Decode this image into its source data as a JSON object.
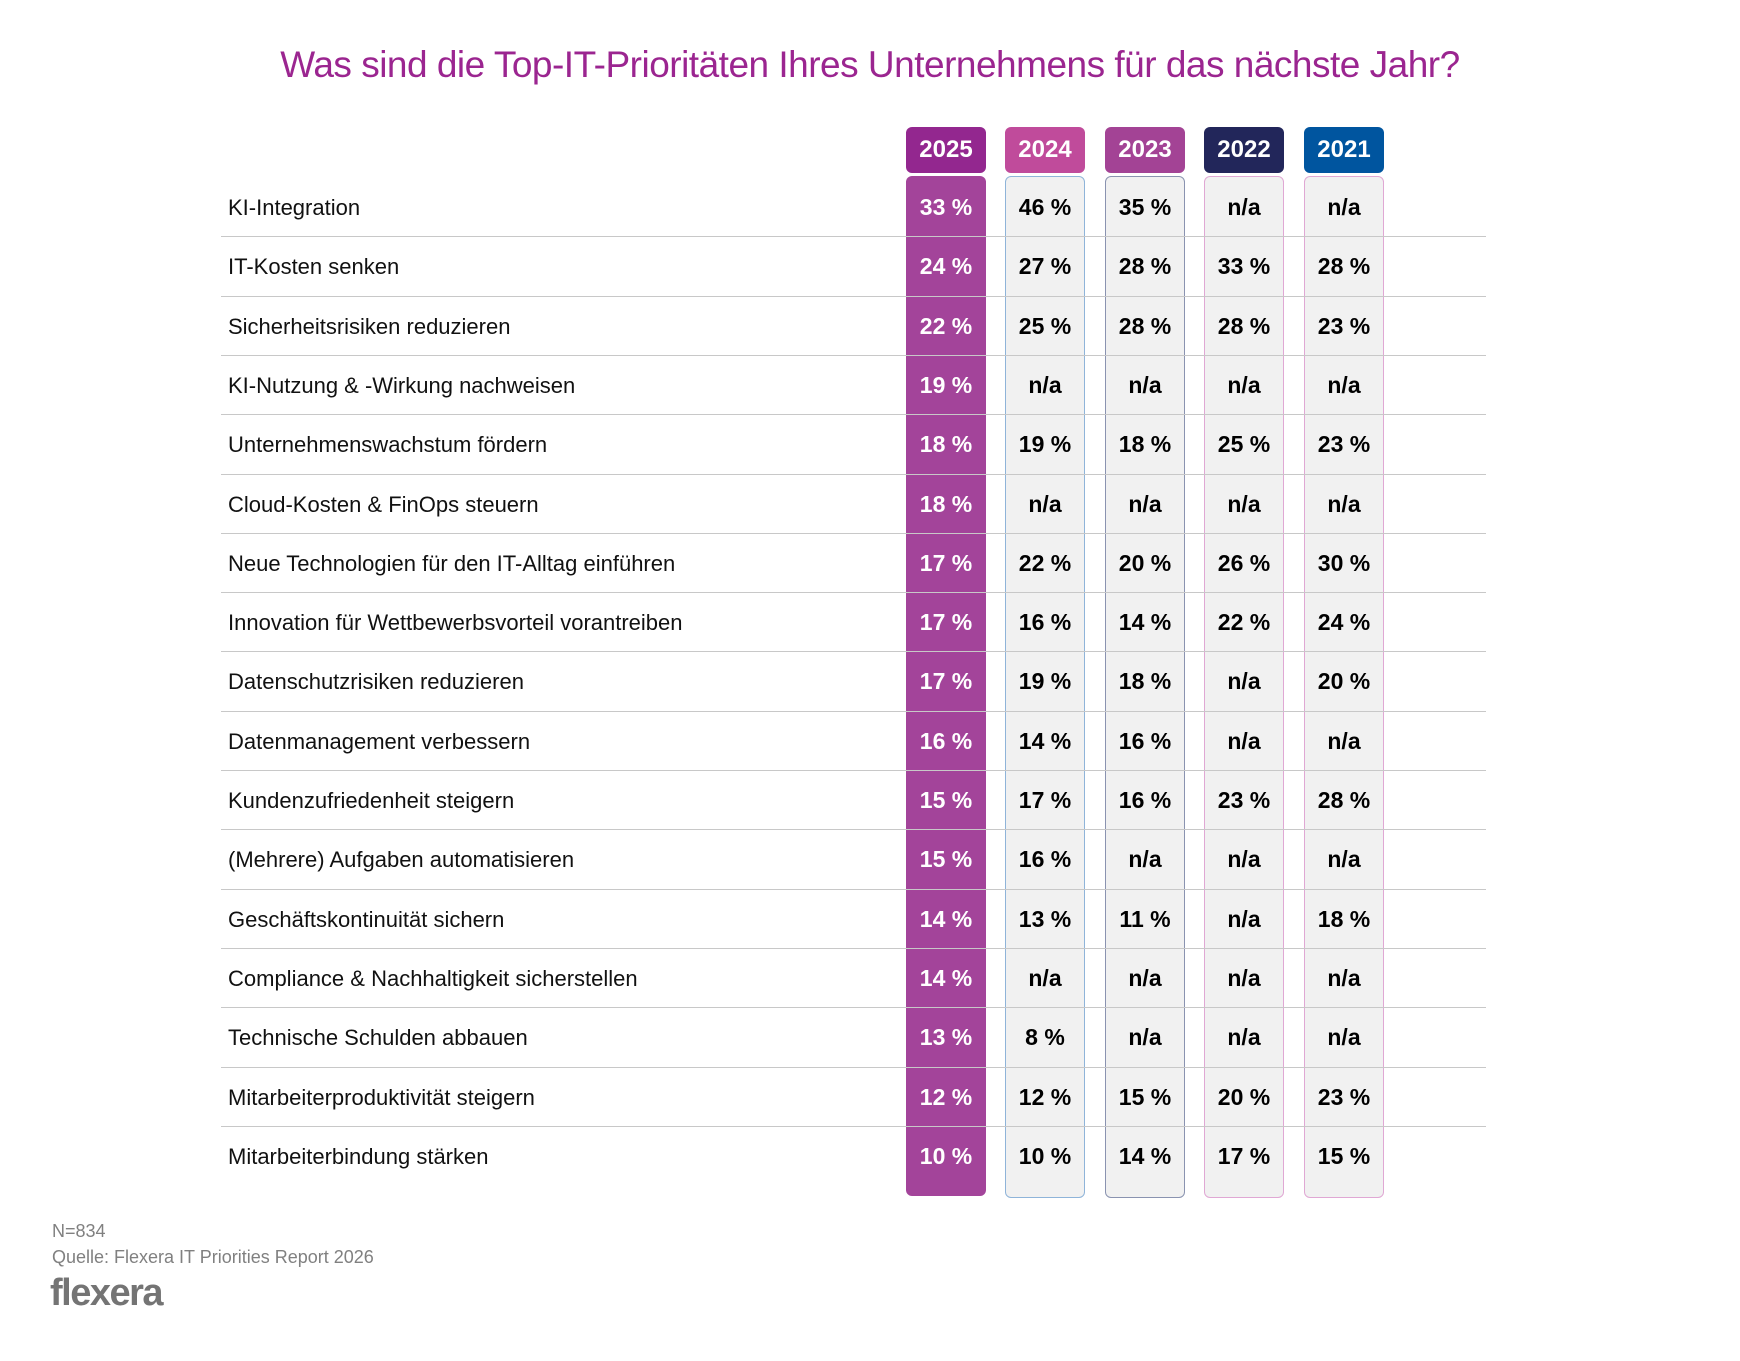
{
  "chart_data": {
    "type": "table",
    "title": "Was sind die Top-IT-Prioritäten Ihres Unternehmens für das nächste Jahr?",
    "columns": [
      {
        "year": "2025",
        "color": "#93278f"
      },
      {
        "year": "2024",
        "color": "#c04b9b"
      },
      {
        "year": "2023",
        "color": "#a34395"
      },
      {
        "year": "2022",
        "color": "#22265a"
      },
      {
        "year": "2021",
        "color": "#00559f"
      }
    ],
    "rows": [
      {
        "label": "KI-Integration",
        "values": [
          "33 %",
          "46 %",
          "35 %",
          "n/a",
          "n/a"
        ]
      },
      {
        "label": "IT-Kosten senken",
        "values": [
          "24 %",
          "27 %",
          "28 %",
          "33 %",
          "28 %"
        ]
      },
      {
        "label": "Sicherheitsrisiken reduzieren",
        "values": [
          "22 %",
          "25 %",
          "28 %",
          "28 %",
          "23 %"
        ]
      },
      {
        "label": "KI-Nutzung & -Wirkung nachweisen",
        "values": [
          "19 %",
          "n/a",
          "n/a",
          "n/a",
          "n/a"
        ]
      },
      {
        "label": "Unternehmenswachstum fördern",
        "values": [
          "18 %",
          "19 %",
          "18 %",
          "25 %",
          "23 %"
        ]
      },
      {
        "label": "Cloud-Kosten & FinOps steuern",
        "values": [
          "18 %",
          "n/a",
          "n/a",
          "n/a",
          "n/a"
        ]
      },
      {
        "label": "Neue Technologien für den IT-Alltag einführen",
        "values": [
          "17 %",
          "22 %",
          "20 %",
          "26 %",
          "30 %"
        ]
      },
      {
        "label": "Innovation für Wettbewerbsvorteil vorantreiben",
        "values": [
          "17 %",
          "16 %",
          "14 %",
          "22 %",
          "24 %"
        ]
      },
      {
        "label": "Datenschutzrisiken reduzieren",
        "values": [
          "17 %",
          "19 %",
          "18 %",
          "n/a",
          "20 %"
        ]
      },
      {
        "label": "Datenmanagement verbessern",
        "values": [
          "16 %",
          "14 %",
          "16 %",
          "n/a",
          "n/a"
        ]
      },
      {
        "label": "Kundenzufriedenheit steigern",
        "values": [
          "15 %",
          "17 %",
          "16 %",
          "23 %",
          "28 %"
        ]
      },
      {
        "label": "(Mehrere) Aufgaben automatisieren",
        "values": [
          "15 %",
          "16 %",
          "n/a",
          "n/a",
          "n/a"
        ]
      },
      {
        "label": "Geschäftskontinuität sichern",
        "values": [
          "14 %",
          "13 %",
          "11 %",
          "n/a",
          "18 %"
        ]
      },
      {
        "label": "Compliance & Nachhaltigkeit sicherstellen",
        "values": [
          "14 %",
          "n/a",
          "n/a",
          "n/a",
          "n/a"
        ]
      },
      {
        "label": "Technische Schulden abbauen",
        "values": [
          "13 %",
          "8 %",
          "n/a",
          "n/a",
          "n/a"
        ]
      },
      {
        "label": "Mitarbeiterproduktivität steigern",
        "values": [
          "12 %",
          "12 %",
          "15 %",
          "20 %",
          "23 %"
        ]
      },
      {
        "label": "Mitarbeiterbindung stärken",
        "values": [
          "10 %",
          "10 %",
          "14 %",
          "17 %",
          "15 %"
        ]
      }
    ],
    "column_box_colors": [
      "#a3449a",
      "#8fb4d9",
      "#8a93b0",
      "#e0a8d4",
      "#e0a8d4"
    ]
  },
  "footer": {
    "sample": "N=834",
    "source": "Quelle: Flexera IT Priorities Report 2026",
    "logo": "flexera"
  }
}
